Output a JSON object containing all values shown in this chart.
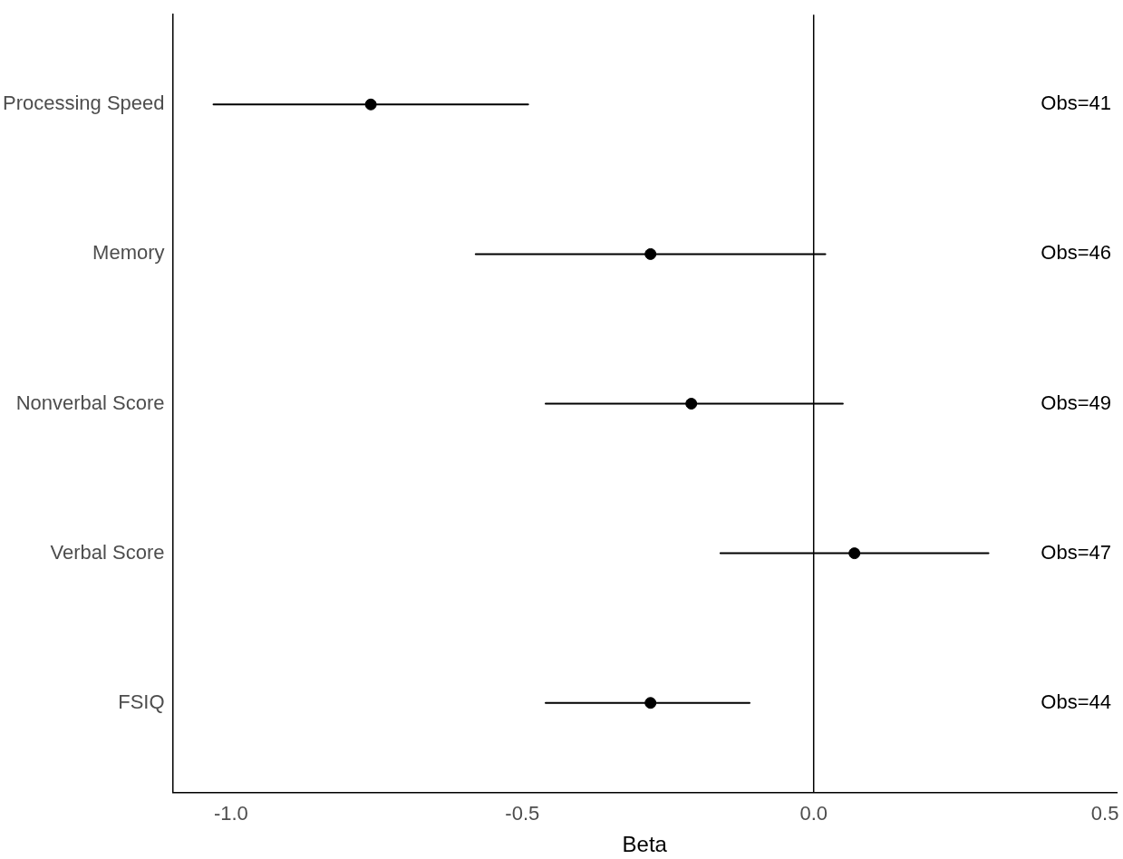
{
  "chart_data": {
    "type": "scatter",
    "orientation": "horizontal",
    "xlabel": "Beta",
    "categories": [
      "Processing Speed",
      "Memory",
      "Nonverbal Score",
      "Verbal Score",
      "FSIQ"
    ],
    "values": [
      -0.76,
      -0.28,
      -0.21,
      0.07,
      -0.28
    ],
    "errors": [
      [
        -1.03,
        -0.49
      ],
      [
        -0.58,
        0.02
      ],
      [
        -0.46,
        0.05
      ],
      [
        -0.16,
        0.3
      ],
      [
        -0.46,
        -0.11
      ]
    ],
    "color": "#000000",
    "marker": "circle",
    "xlim": [
      -1.1,
      0.52
    ],
    "xticks": [
      {
        "value": -1,
        "label": "-1.0"
      },
      -0.5,
      {
        "value": 0,
        "label": "0.0"
      },
      0.5
    ],
    "ref_lines": [
      {
        "axis": "x",
        "value": 0,
        "color": "#000000"
      }
    ],
    "annotations": [
      "Obs=41",
      "Obs=46",
      "Obs=49",
      "Obs=47",
      "Obs=44"
    ],
    "grid": false,
    "legend": false
  }
}
